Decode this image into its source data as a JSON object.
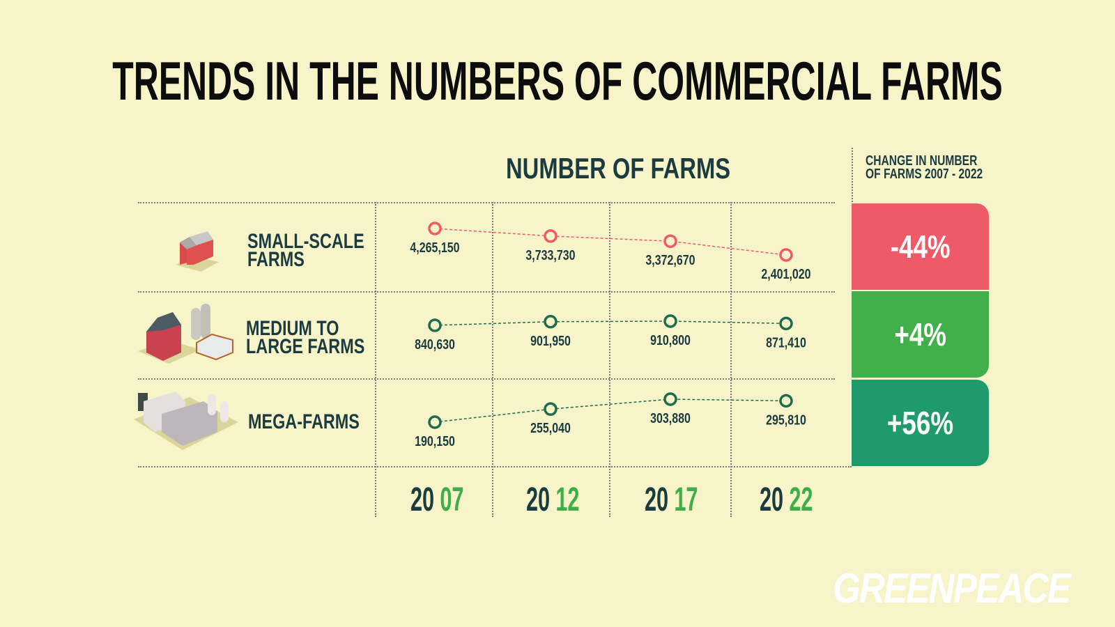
{
  "title": "TRENDS IN THE NUMBERS OF COMMERCIAL FARMS",
  "chart_data": {
    "type": "line",
    "title": "NUMBER OF FARMS",
    "change_header": "CHANGE IN NUMBER OF FARMS 2007 - 2022",
    "change_header_lines": [
      "CHANGE IN NUMBER",
      "OF FARMS 2007 - 2022"
    ],
    "x": [
      "2007",
      "2012",
      "2017",
      "2022"
    ],
    "year_parts": [
      [
        "20",
        "07"
      ],
      [
        "20",
        "12"
      ],
      [
        "20",
        "17"
      ],
      [
        "20",
        "22"
      ]
    ],
    "series": [
      {
        "name": "SMALL-SCALE FARMS",
        "label_lines": [
          "SMALL-SCALE",
          "FARMS"
        ],
        "values": [
          4265150,
          3733730,
          3372670,
          2401020
        ],
        "value_labels": [
          "4,265,150",
          "3,733,730",
          "3,372,670",
          "2,401,020"
        ],
        "change": "-44%",
        "color": "#ef5a68",
        "badge_color": "#ef5a68"
      },
      {
        "name": "MEDIUM TO LARGE FARMS",
        "label_lines": [
          "MEDIUM TO",
          "LARGE FARMS"
        ],
        "values": [
          840630,
          901950,
          910800,
          871410
        ],
        "value_labels": [
          "840,630",
          "901,950",
          "910,800",
          "871,410"
        ],
        "change": "+4%",
        "color": "#1f6b50",
        "badge_color": "#41b04a"
      },
      {
        "name": "MEGA-FARMS",
        "label_lines": [
          "MEGA-FARMS"
        ],
        "values": [
          190150,
          255040,
          303880,
          295810
        ],
        "value_labels": [
          "190,150",
          "255,040",
          "303,880",
          "295,810"
        ],
        "change": "+56%",
        "color": "#1f6b50",
        "badge_color": "#1e9a6c"
      }
    ]
  },
  "logo": "GREENPEACE"
}
